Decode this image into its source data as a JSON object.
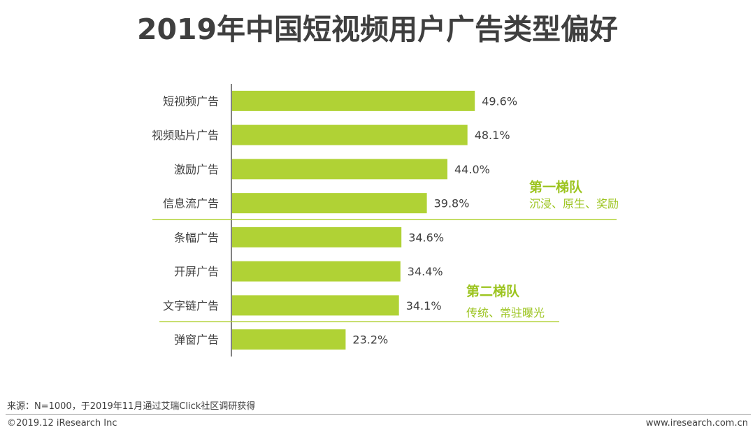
{
  "chart_data": {
    "type": "bar",
    "orientation": "horizontal",
    "title": "2019年中国短视频用户广告类型偏好",
    "categories": [
      "短视频广告",
      "视频贴片广告",
      "激励广告",
      "信息流广告",
      "条幅广告",
      "开屏广告",
      "文字链广告",
      "弹窗广告"
    ],
    "values": [
      49.6,
      48.1,
      44.0,
      39.8,
      34.6,
      34.4,
      34.1,
      23.2
    ],
    "value_labels": [
      "49.6%",
      "48.1%",
      "44.0%",
      "39.8%",
      "34.6%",
      "34.4%",
      "34.1%",
      "23.2%"
    ],
    "xlim": [
      0,
      100
    ],
    "unit": "%",
    "grid": false,
    "bar_color": "#b0d235",
    "tiers": [
      {
        "name": "第一梯队",
        "desc": "沉浸、原生、奖励",
        "after_category": "信息流广告"
      },
      {
        "name": "第二梯队",
        "desc": "传统、常驻曝光",
        "after_category": "文字链广告"
      }
    ]
  },
  "source_text": "来源：N=1000，于2019年11月通过艾瑞Click社区调研获得",
  "copyright": "©2019.12 iResearch Inc",
  "website": "www.iresearch.com.cn",
  "colors": {
    "bar": "#b0d235",
    "tier_text": "#9cc41f",
    "divider": "#b0d235",
    "axis": "#595959",
    "text": "#404040"
  }
}
